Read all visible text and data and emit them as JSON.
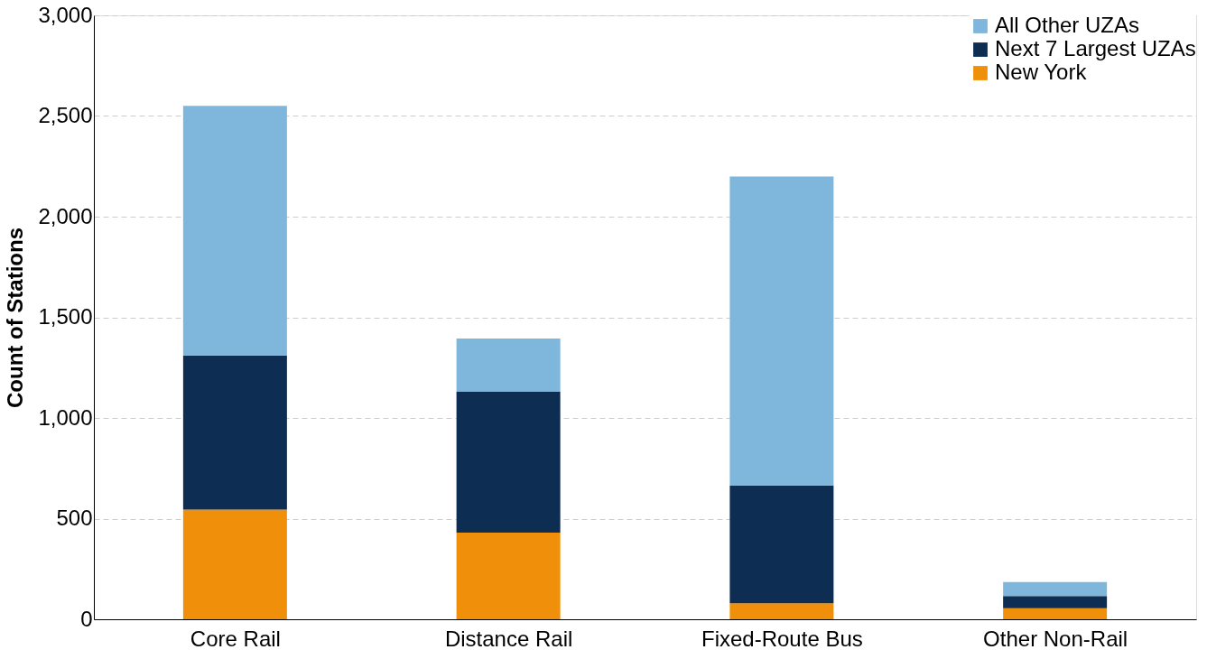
{
  "chart_data": {
    "type": "bar",
    "stacked": true,
    "ylabel": "Count of Stations",
    "categories": [
      "Core Rail",
      "Distance Rail",
      "Fixed-Route Bus",
      "Other Non-Rail"
    ],
    "series": [
      {
        "name": "New York",
        "color": "#f0900a",
        "values": [
          545,
          430,
          80,
          55
        ]
      },
      {
        "name": "Next 7 Largest UZAs",
        "color": "#0e2d52",
        "values": [
          765,
          700,
          585,
          60
        ]
      },
      {
        "name": "All Other UZAs",
        "color": "#7fb7dc",
        "values": [
          1240,
          265,
          1535,
          70
        ]
      }
    ],
    "ylim": [
      0,
      3000
    ],
    "yticks": [
      0,
      {
        "value": 500,
        "label": "500"
      },
      {
        "value": 1000,
        "label": "1,000"
      },
      {
        "value": 1500,
        "label": "1,500"
      },
      {
        "value": 2000,
        "label": "2,000"
      },
      {
        "value": 2500,
        "label": "2,500"
      },
      {
        "value": 3000,
        "label": "3,000"
      }
    ],
    "grid": "y",
    "legend": "top right"
  }
}
